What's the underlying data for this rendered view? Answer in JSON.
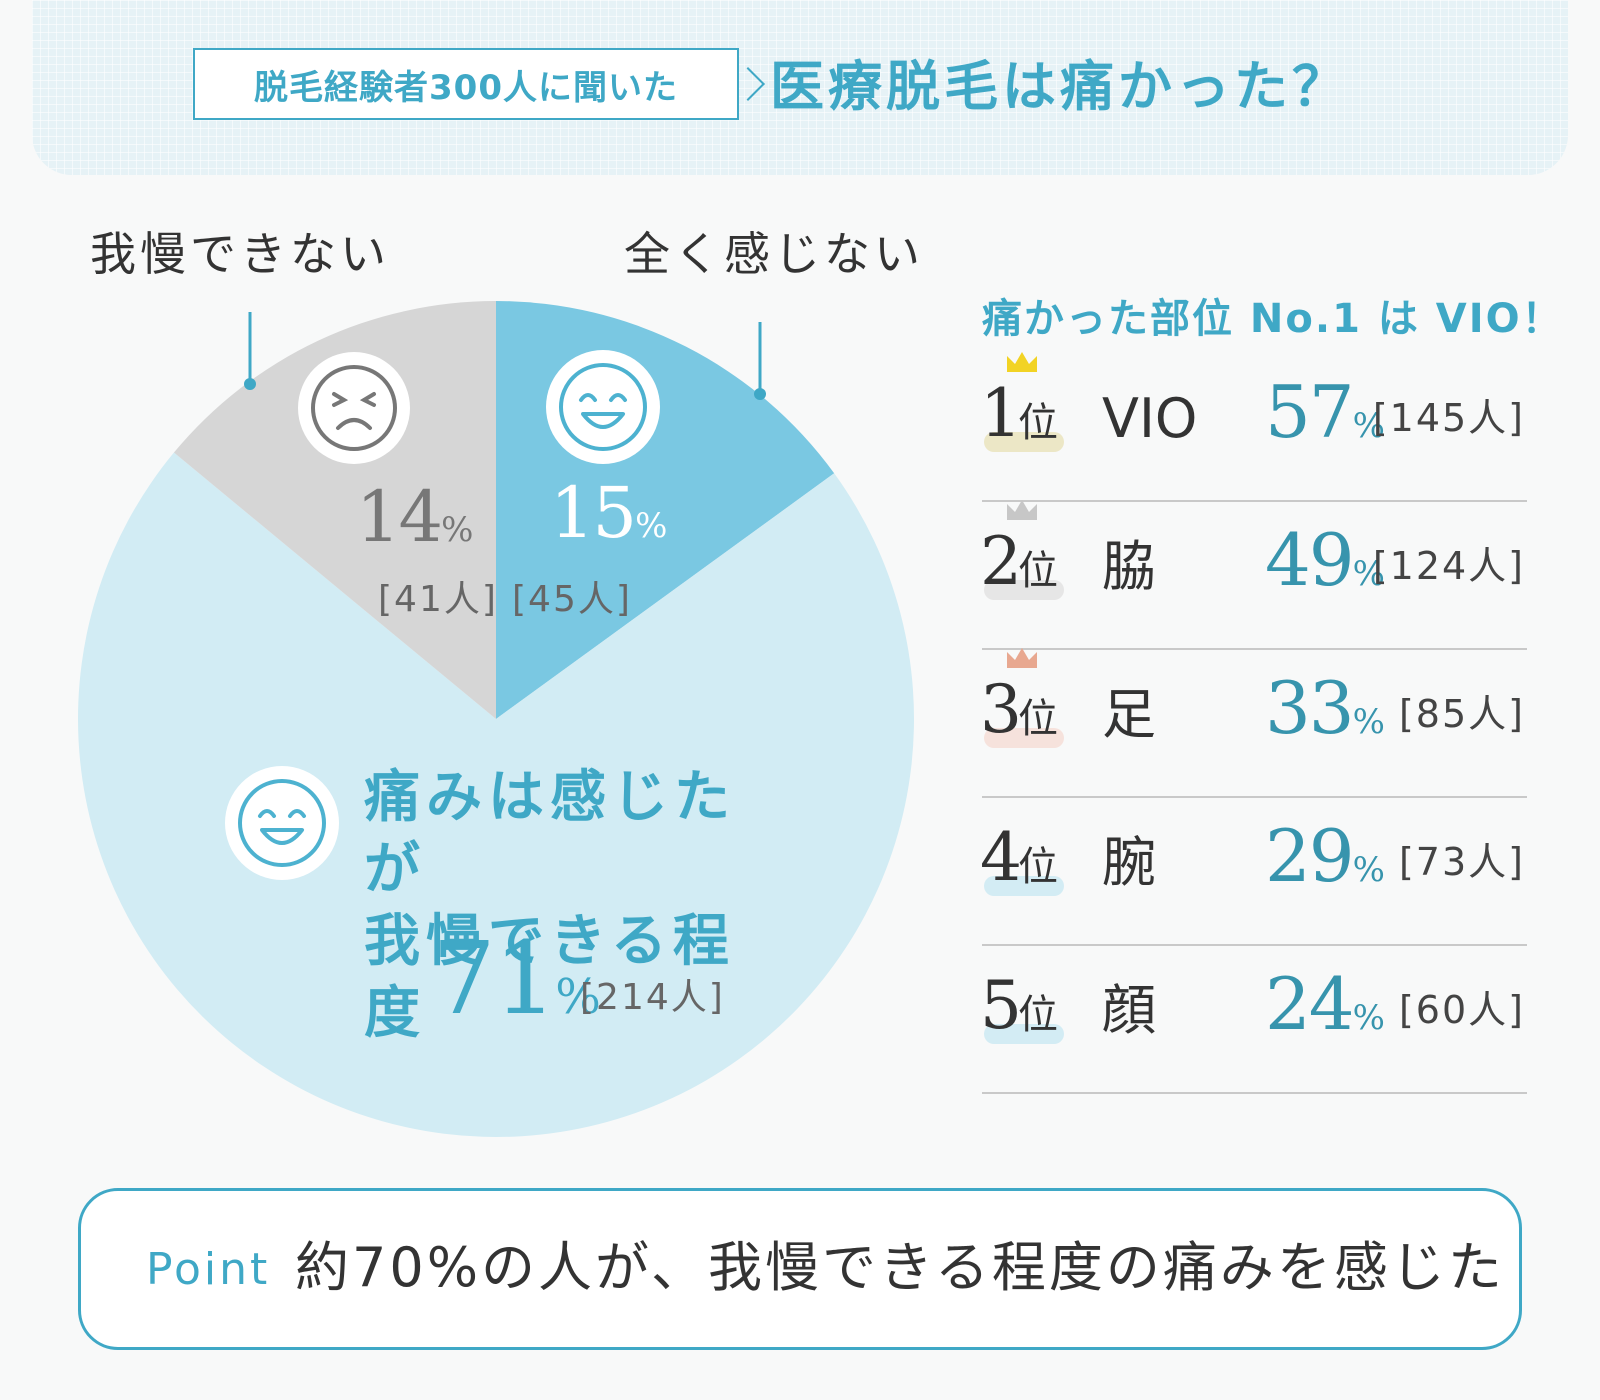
{
  "header": {
    "survey_tag": "脱毛経験者300人に聞いた",
    "title": "医療脱毛は痛かった？"
  },
  "chart_data": {
    "type": "pie",
    "slices": [
      {
        "name": "全く感じない",
        "value": 15,
        "count": "[45人]",
        "color": "#7ac8e2"
      },
      {
        "name": "痛みは感じたが我慢できる程度",
        "value": 71,
        "count": "[214人]",
        "color": "#d2ecf4"
      },
      {
        "name": "我慢できない",
        "value": 14,
        "count": "[41人]",
        "color": "#d6d6d6"
      }
    ],
    "labels": {
      "cannot_bear": "我慢できない",
      "no_pain": "全く感じない",
      "bearable_line1": "痛みは感じたが",
      "bearable_line2": "我慢できる程度"
    },
    "pct_sign": "%"
  },
  "ranking": {
    "title": "痛かった部位 No.1 は VIO！",
    "rank_suffix": "位",
    "items": [
      {
        "rank": "1",
        "part": "VIO",
        "pct": "57",
        "count": "[145人]",
        "crown": "#f2d324",
        "highlight": "#ece7c6"
      },
      {
        "rank": "2",
        "part": "脇",
        "pct": "49",
        "count": "[124人]",
        "crown": "#c7c7c7",
        "highlight": "#e6e6e6"
      },
      {
        "rank": "3",
        "part": "足",
        "pct": "33",
        "count": "[85人]",
        "crown": "#e8a890",
        "highlight": "#f6e2dc"
      },
      {
        "rank": "4",
        "part": "腕",
        "pct": "29",
        "count": "[73人]",
        "crown": "",
        "highlight": "#d3ecf4"
      },
      {
        "rank": "5",
        "part": "顔",
        "pct": "24",
        "count": "[60人]",
        "crown": "",
        "highlight": "#d3ecf4"
      }
    ]
  },
  "point": {
    "label": "Point",
    "text": "約70%の人が、我慢できる程度の痛みを感じた"
  },
  "colors": {
    "accent": "#3fa8c6",
    "text": "#333333",
    "pct_blue": "#3794ad"
  }
}
